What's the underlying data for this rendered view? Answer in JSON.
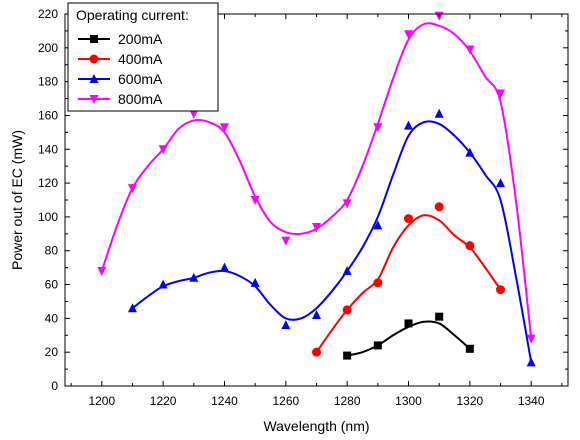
{
  "chart_data": {
    "type": "line",
    "xlabel": "Wavelength (nm)",
    "ylabel": "Power out of EC (mW)",
    "xlim": [
      1188,
      1352
    ],
    "ylim": [
      0,
      220
    ],
    "xticks": [
      1200,
      1220,
      1240,
      1260,
      1280,
      1300,
      1320,
      1340
    ],
    "yticks": [
      0,
      20,
      40,
      60,
      80,
      100,
      120,
      140,
      160,
      180,
      200,
      220
    ],
    "grid": false,
    "legend": {
      "title": "Operating current:",
      "placement": "top-left"
    },
    "series": [
      {
        "name": "200mA",
        "color": "#000000",
        "marker": "square",
        "points": [
          [
            1280,
            18
          ],
          [
            1290,
            24
          ],
          [
            1300,
            37
          ],
          [
            1310,
            41
          ],
          [
            1320,
            22
          ]
        ],
        "fit": [
          [
            1280,
            18
          ],
          [
            1285,
            20
          ],
          [
            1290,
            24
          ],
          [
            1295,
            30
          ],
          [
            1300,
            35
          ],
          [
            1305,
            38
          ],
          [
            1310,
            37
          ],
          [
            1315,
            30
          ],
          [
            1320,
            22
          ]
        ]
      },
      {
        "name": "400mA",
        "color": "#ff0000",
        "marker": "circle",
        "points": [
          [
            1270,
            20
          ],
          [
            1280,
            45
          ],
          [
            1290,
            61
          ],
          [
            1300,
            99
          ],
          [
            1310,
            106
          ],
          [
            1320,
            83
          ],
          [
            1330,
            57
          ]
        ],
        "fit": [
          [
            1270,
            20
          ],
          [
            1275,
            33
          ],
          [
            1280,
            45
          ],
          [
            1285,
            55
          ],
          [
            1290,
            63
          ],
          [
            1295,
            82
          ],
          [
            1300,
            95
          ],
          [
            1305,
            101
          ],
          [
            1310,
            98
          ],
          [
            1315,
            89
          ],
          [
            1320,
            82
          ],
          [
            1325,
            70
          ],
          [
            1330,
            57
          ]
        ]
      },
      {
        "name": "600mA",
        "color": "#0000ff",
        "marker": "triangle-up",
        "points": [
          [
            1210,
            46
          ],
          [
            1220,
            60
          ],
          [
            1230,
            64
          ],
          [
            1240,
            70
          ],
          [
            1250,
            61
          ],
          [
            1260,
            36
          ],
          [
            1270,
            42
          ],
          [
            1280,
            68
          ],
          [
            1290,
            95
          ],
          [
            1300,
            154
          ],
          [
            1310,
            161
          ],
          [
            1320,
            138
          ],
          [
            1330,
            120
          ],
          [
            1340,
            14
          ]
        ],
        "fit": [
          [
            1210,
            46
          ],
          [
            1215,
            53
          ],
          [
            1220,
            59
          ],
          [
            1225,
            62
          ],
          [
            1230,
            64
          ],
          [
            1235,
            67
          ],
          [
            1240,
            68
          ],
          [
            1245,
            65
          ],
          [
            1250,
            59
          ],
          [
            1255,
            48
          ],
          [
            1260,
            40
          ],
          [
            1265,
            40
          ],
          [
            1270,
            46
          ],
          [
            1275,
            56
          ],
          [
            1280,
            68
          ],
          [
            1285,
            82
          ],
          [
            1290,
            100
          ],
          [
            1295,
            125
          ],
          [
            1300,
            148
          ],
          [
            1305,
            156
          ],
          [
            1310,
            155
          ],
          [
            1315,
            148
          ],
          [
            1320,
            138
          ],
          [
            1325,
            125
          ],
          [
            1330,
            110
          ],
          [
            1335,
            65
          ],
          [
            1340,
            14
          ]
        ]
      },
      {
        "name": "800mA",
        "color": "#ff00ff",
        "marker": "triangle-down",
        "points": [
          [
            1200,
            68
          ],
          [
            1210,
            117
          ],
          [
            1220,
            140
          ],
          [
            1230,
            161
          ],
          [
            1240,
            153
          ],
          [
            1250,
            110
          ],
          [
            1260,
            86
          ],
          [
            1270,
            94
          ],
          [
            1280,
            108
          ],
          [
            1290,
            153
          ],
          [
            1300,
            208
          ],
          [
            1310,
            219
          ],
          [
            1320,
            199
          ],
          [
            1330,
            173
          ],
          [
            1340,
            28
          ]
        ],
        "fit": [
          [
            1200,
            68
          ],
          [
            1205,
            95
          ],
          [
            1210,
            117
          ],
          [
            1215,
            130
          ],
          [
            1220,
            140
          ],
          [
            1225,
            152
          ],
          [
            1230,
            157
          ],
          [
            1235,
            156
          ],
          [
            1240,
            150
          ],
          [
            1245,
            133
          ],
          [
            1250,
            112
          ],
          [
            1255,
            97
          ],
          [
            1260,
            91
          ],
          [
            1265,
            90
          ],
          [
            1270,
            93
          ],
          [
            1275,
            100
          ],
          [
            1280,
            110
          ],
          [
            1285,
            130
          ],
          [
            1290,
            155
          ],
          [
            1295,
            182
          ],
          [
            1300,
            205
          ],
          [
            1305,
            214
          ],
          [
            1310,
            213
          ],
          [
            1315,
            208
          ],
          [
            1320,
            198
          ],
          [
            1325,
            183
          ],
          [
            1330,
            168
          ],
          [
            1335,
            110
          ],
          [
            1340,
            28
          ]
        ]
      }
    ]
  }
}
